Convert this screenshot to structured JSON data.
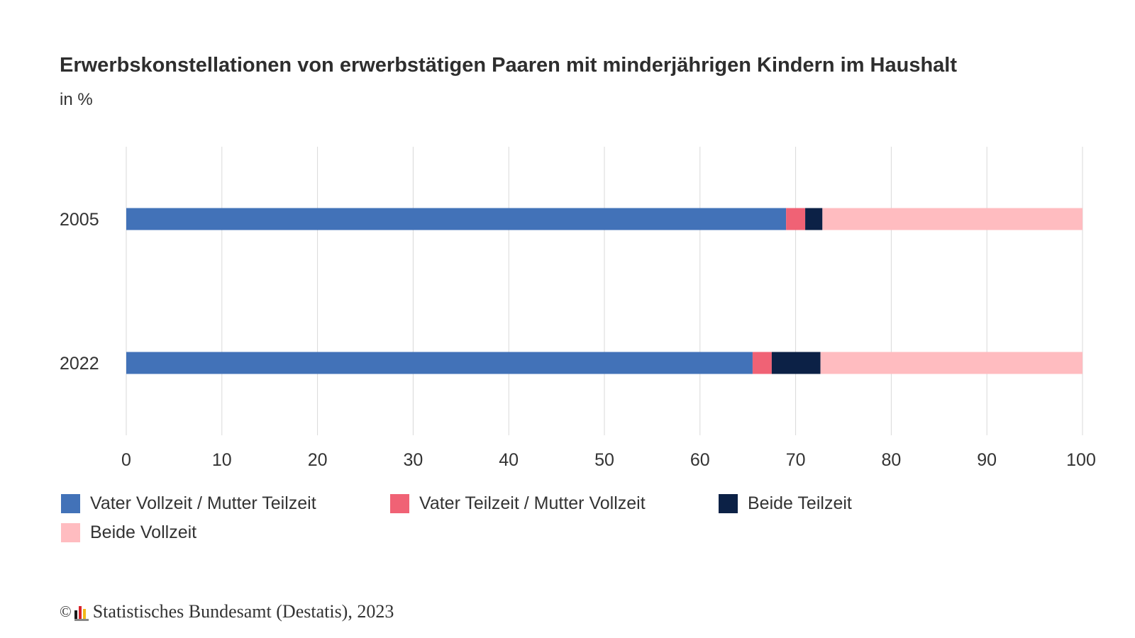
{
  "title": "Erwerbskonstellationen von erwerbstätigen Paaren mit minderjährigen Kindern im Haushalt",
  "subtitle": "in %",
  "footer": {
    "copyright_symbol": "©",
    "source": "Statistisches Bundesamt (Destatis), 2023",
    "logo_icon": "destatis-logo-icon"
  },
  "colors": {
    "vater_vollzeit_mutter_teilzeit": "#4272b8",
    "vater_teilzeit_mutter_vollzeit": "#f06275",
    "beide_teilzeit": "#0c2146",
    "beide_vollzeit": "#ffbcc0",
    "grid": "#d9d9d9"
  },
  "chart_data": {
    "type": "bar",
    "orientation": "horizontal",
    "stacked": true,
    "title": "Erwerbskonstellationen von erwerbstätigen Paaren mit minderjährigen Kindern im Haushalt",
    "subtitle": "in %",
    "categories": [
      "2005",
      "2022"
    ],
    "series": [
      {
        "name": "Vater Vollzeit / Mutter Teilzeit",
        "values": [
          69.0,
          65.5
        ]
      },
      {
        "name": "Vater Teilzeit / Mutter Vollzeit",
        "values": [
          2.0,
          2.0
        ]
      },
      {
        "name": "Beide Teilzeit",
        "values": [
          1.8,
          5.1
        ]
      },
      {
        "name": "Beide Vollzeit",
        "values": [
          27.2,
          27.4
        ]
      }
    ],
    "xlim": [
      0,
      100
    ],
    "xticks": [
      "0",
      "10",
      "20",
      "30",
      "40",
      "50",
      "60",
      "70",
      "80",
      "90",
      "100"
    ],
    "grid": true,
    "legend_position": "bottom"
  }
}
